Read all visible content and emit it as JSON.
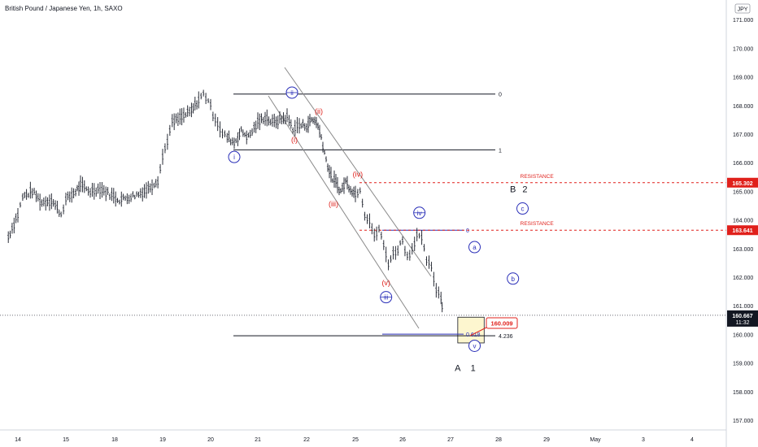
{
  "header": {
    "title": "British Pound / Japanese Yen, 1h, SAXO",
    "currency": "JPY"
  },
  "colors": {
    "candle": "#131722",
    "blue": "#2a2fb8",
    "red": "#e0201b",
    "fib": "#131722",
    "resistance": "#e0201b",
    "zone_fill": "#fdf6cf",
    "channel": "#8a8a8a"
  },
  "chart_data": {
    "type": "line",
    "title": "British Pound / Japanese Yen, 1h, SAXO",
    "xlabel": "",
    "ylabel": "",
    "ylim": [
      156.8,
      171.5
    ],
    "grid": false,
    "x_ticks": [
      {
        "label": "14",
        "day": 0
      },
      {
        "label": "15",
        "day": 1
      },
      {
        "label": "18",
        "day": 2
      },
      {
        "label": "19",
        "day": 3
      },
      {
        "label": "20",
        "day": 4
      },
      {
        "label": "21",
        "day": 5
      },
      {
        "label": "22",
        "day": 6
      },
      {
        "label": "25",
        "day": 7
      },
      {
        "label": "26",
        "day": 8
      },
      {
        "label": "27",
        "day": 9
      },
      {
        "label": "28",
        "day": 10
      },
      {
        "label": "29",
        "day": 11
      },
      {
        "label": "May",
        "day": 12
      },
      {
        "label": "3",
        "day": 13
      },
      {
        "label": "4",
        "day": 14
      }
    ],
    "y_ticks": [
      "171.000",
      "170.000",
      "169.000",
      "168.000",
      "167.000",
      "166.000",
      "165.000",
      "164.000",
      "163.000",
      "162.000",
      "161.000",
      "160.000",
      "159.000",
      "158.000",
      "157.000"
    ],
    "price_path": [
      [
        -0.2,
        163.4
      ],
      [
        0.0,
        164.2
      ],
      [
        0.1,
        164.8
      ],
      [
        0.3,
        165.0
      ],
      [
        0.5,
        164.6
      ],
      [
        0.7,
        164.7
      ],
      [
        0.9,
        164.2
      ],
      [
        1.0,
        164.7
      ],
      [
        1.2,
        165.0
      ],
      [
        1.3,
        165.2
      ],
      [
        1.5,
        165.0
      ],
      [
        1.7,
        165.1
      ],
      [
        1.9,
        164.9
      ],
      [
        2.1,
        164.7
      ],
      [
        2.3,
        164.8
      ],
      [
        2.5,
        164.9
      ],
      [
        2.7,
        165.1
      ],
      [
        2.9,
        165.4
      ],
      [
        3.0,
        166.2
      ],
      [
        3.1,
        166.8
      ],
      [
        3.2,
        167.4
      ],
      [
        3.4,
        167.6
      ],
      [
        3.6,
        167.8
      ],
      [
        3.75,
        168.2
      ],
      [
        3.85,
        168.4
      ],
      [
        3.95,
        168.2
      ],
      [
        4.05,
        167.7
      ],
      [
        4.15,
        167.4
      ],
      [
        4.25,
        167.0
      ],
      [
        4.35,
        166.9
      ],
      [
        4.5,
        166.7
      ],
      [
        4.65,
        167.1
      ],
      [
        4.8,
        166.9
      ],
      [
        5.0,
        167.4
      ],
      [
        5.15,
        167.6
      ],
      [
        5.3,
        167.4
      ],
      [
        5.45,
        167.5
      ],
      [
        5.6,
        167.6
      ],
      [
        5.72,
        167.2
      ],
      [
        5.85,
        167.3
      ],
      [
        6.0,
        167.3
      ],
      [
        6.1,
        167.5
      ],
      [
        6.2,
        167.45
      ],
      [
        6.3,
        166.9
      ],
      [
        6.4,
        166.1
      ],
      [
        6.5,
        165.5
      ],
      [
        6.6,
        165.3
      ],
      [
        6.7,
        165.0
      ],
      [
        6.8,
        165.35
      ],
      [
        6.9,
        165.1
      ],
      [
        7.0,
        164.9
      ],
      [
        7.1,
        165.1
      ],
      [
        7.2,
        164.2
      ],
      [
        7.3,
        164.0
      ],
      [
        7.4,
        163.4
      ],
      [
        7.5,
        163.7
      ],
      [
        7.6,
        163.1
      ],
      [
        7.7,
        162.5
      ],
      [
        7.8,
        162.8
      ],
      [
        7.9,
        163.0
      ],
      [
        8.0,
        163.3
      ],
      [
        8.1,
        162.7
      ],
      [
        8.2,
        163.0
      ],
      [
        8.3,
        163.5
      ],
      [
        8.4,
        163.3
      ],
      [
        8.5,
        162.6
      ],
      [
        8.6,
        162.3
      ],
      [
        8.7,
        161.6
      ],
      [
        8.8,
        161.3
      ],
      [
        8.85,
        160.75
      ]
    ],
    "price_current": 160.667,
    "price_current_time": "11:32",
    "resistance_levels": [
      {
        "label": "RESISTANCE",
        "price": 165.302,
        "price_label": "165.302"
      },
      {
        "label": "RESISTANCE",
        "price": 163.641,
        "price_label": "163.641"
      }
    ],
    "fib_levels": [
      {
        "label": "0",
        "price": 168.4
      },
      {
        "label": "1",
        "price": 166.45
      },
      {
        "label": "4.236",
        "price": 159.95
      }
    ],
    "fib_blue": [
      {
        "label": "0",
        "price": 163.641
      },
      {
        "label": "0.618",
        "price": 160.009
      }
    ],
    "target_label": "160.009",
    "target_price": 160.009,
    "target_zone": {
      "day_start": 9.15,
      "day_end": 9.7,
      "top": 160.6,
      "bottom": 159.7
    },
    "waves": [
      {
        "label": "i",
        "day": 4.5,
        "price": 166.2,
        "color": "blue",
        "circle": true,
        "double": false
      },
      {
        "label": "ii",
        "day": 5.7,
        "price": 168.45,
        "color": "blue",
        "circle": true,
        "double": true
      },
      {
        "label": "(i)",
        "day": 5.75,
        "price": 166.8,
        "color": "red",
        "circle": false,
        "double": false
      },
      {
        "label": "(ii)",
        "day": 6.25,
        "price": 167.8,
        "color": "red",
        "circle": false,
        "double": false
      },
      {
        "label": "(iii)",
        "day": 6.55,
        "price": 164.55,
        "color": "red",
        "circle": false,
        "double": false
      },
      {
        "label": "(iv)",
        "day": 7.05,
        "price": 165.6,
        "color": "red",
        "circle": false,
        "double": false
      },
      {
        "label": "(v)",
        "day": 7.65,
        "price": 161.8,
        "color": "red",
        "circle": false,
        "double": false
      },
      {
        "label": "iii",
        "day": 7.65,
        "price": 161.3,
        "color": "blue",
        "circle": true,
        "double": true
      },
      {
        "label": "iv",
        "day": 8.35,
        "price": 164.25,
        "color": "blue",
        "circle": true,
        "double": true
      },
      {
        "label": "v",
        "day": 9.5,
        "price": 159.6,
        "color": "blue",
        "circle": true,
        "double": false
      },
      {
        "label": "a",
        "day": 9.5,
        "price": 163.05,
        "color": "blue",
        "circle": true,
        "double": false
      },
      {
        "label": "b",
        "day": 10.3,
        "price": 161.95,
        "color": "blue",
        "circle": true,
        "double": false
      },
      {
        "label": "c",
        "day": 10.5,
        "price": 164.4,
        "color": "blue",
        "circle": true,
        "double": false
      },
      {
        "label": "A",
        "day": 9.15,
        "price": 158.8,
        "color": "black",
        "circle": false,
        "double": false
      },
      {
        "label": "1",
        "day": 9.47,
        "price": 158.8,
        "color": "black",
        "circle": false,
        "double": false
      },
      {
        "label": "B",
        "day": 10.3,
        "price": 165.05,
        "color": "black",
        "circle": false,
        "double": false
      },
      {
        "label": "2",
        "day": 10.55,
        "price": 165.05,
        "color": "black",
        "circle": false,
        "double": false
      }
    ]
  }
}
